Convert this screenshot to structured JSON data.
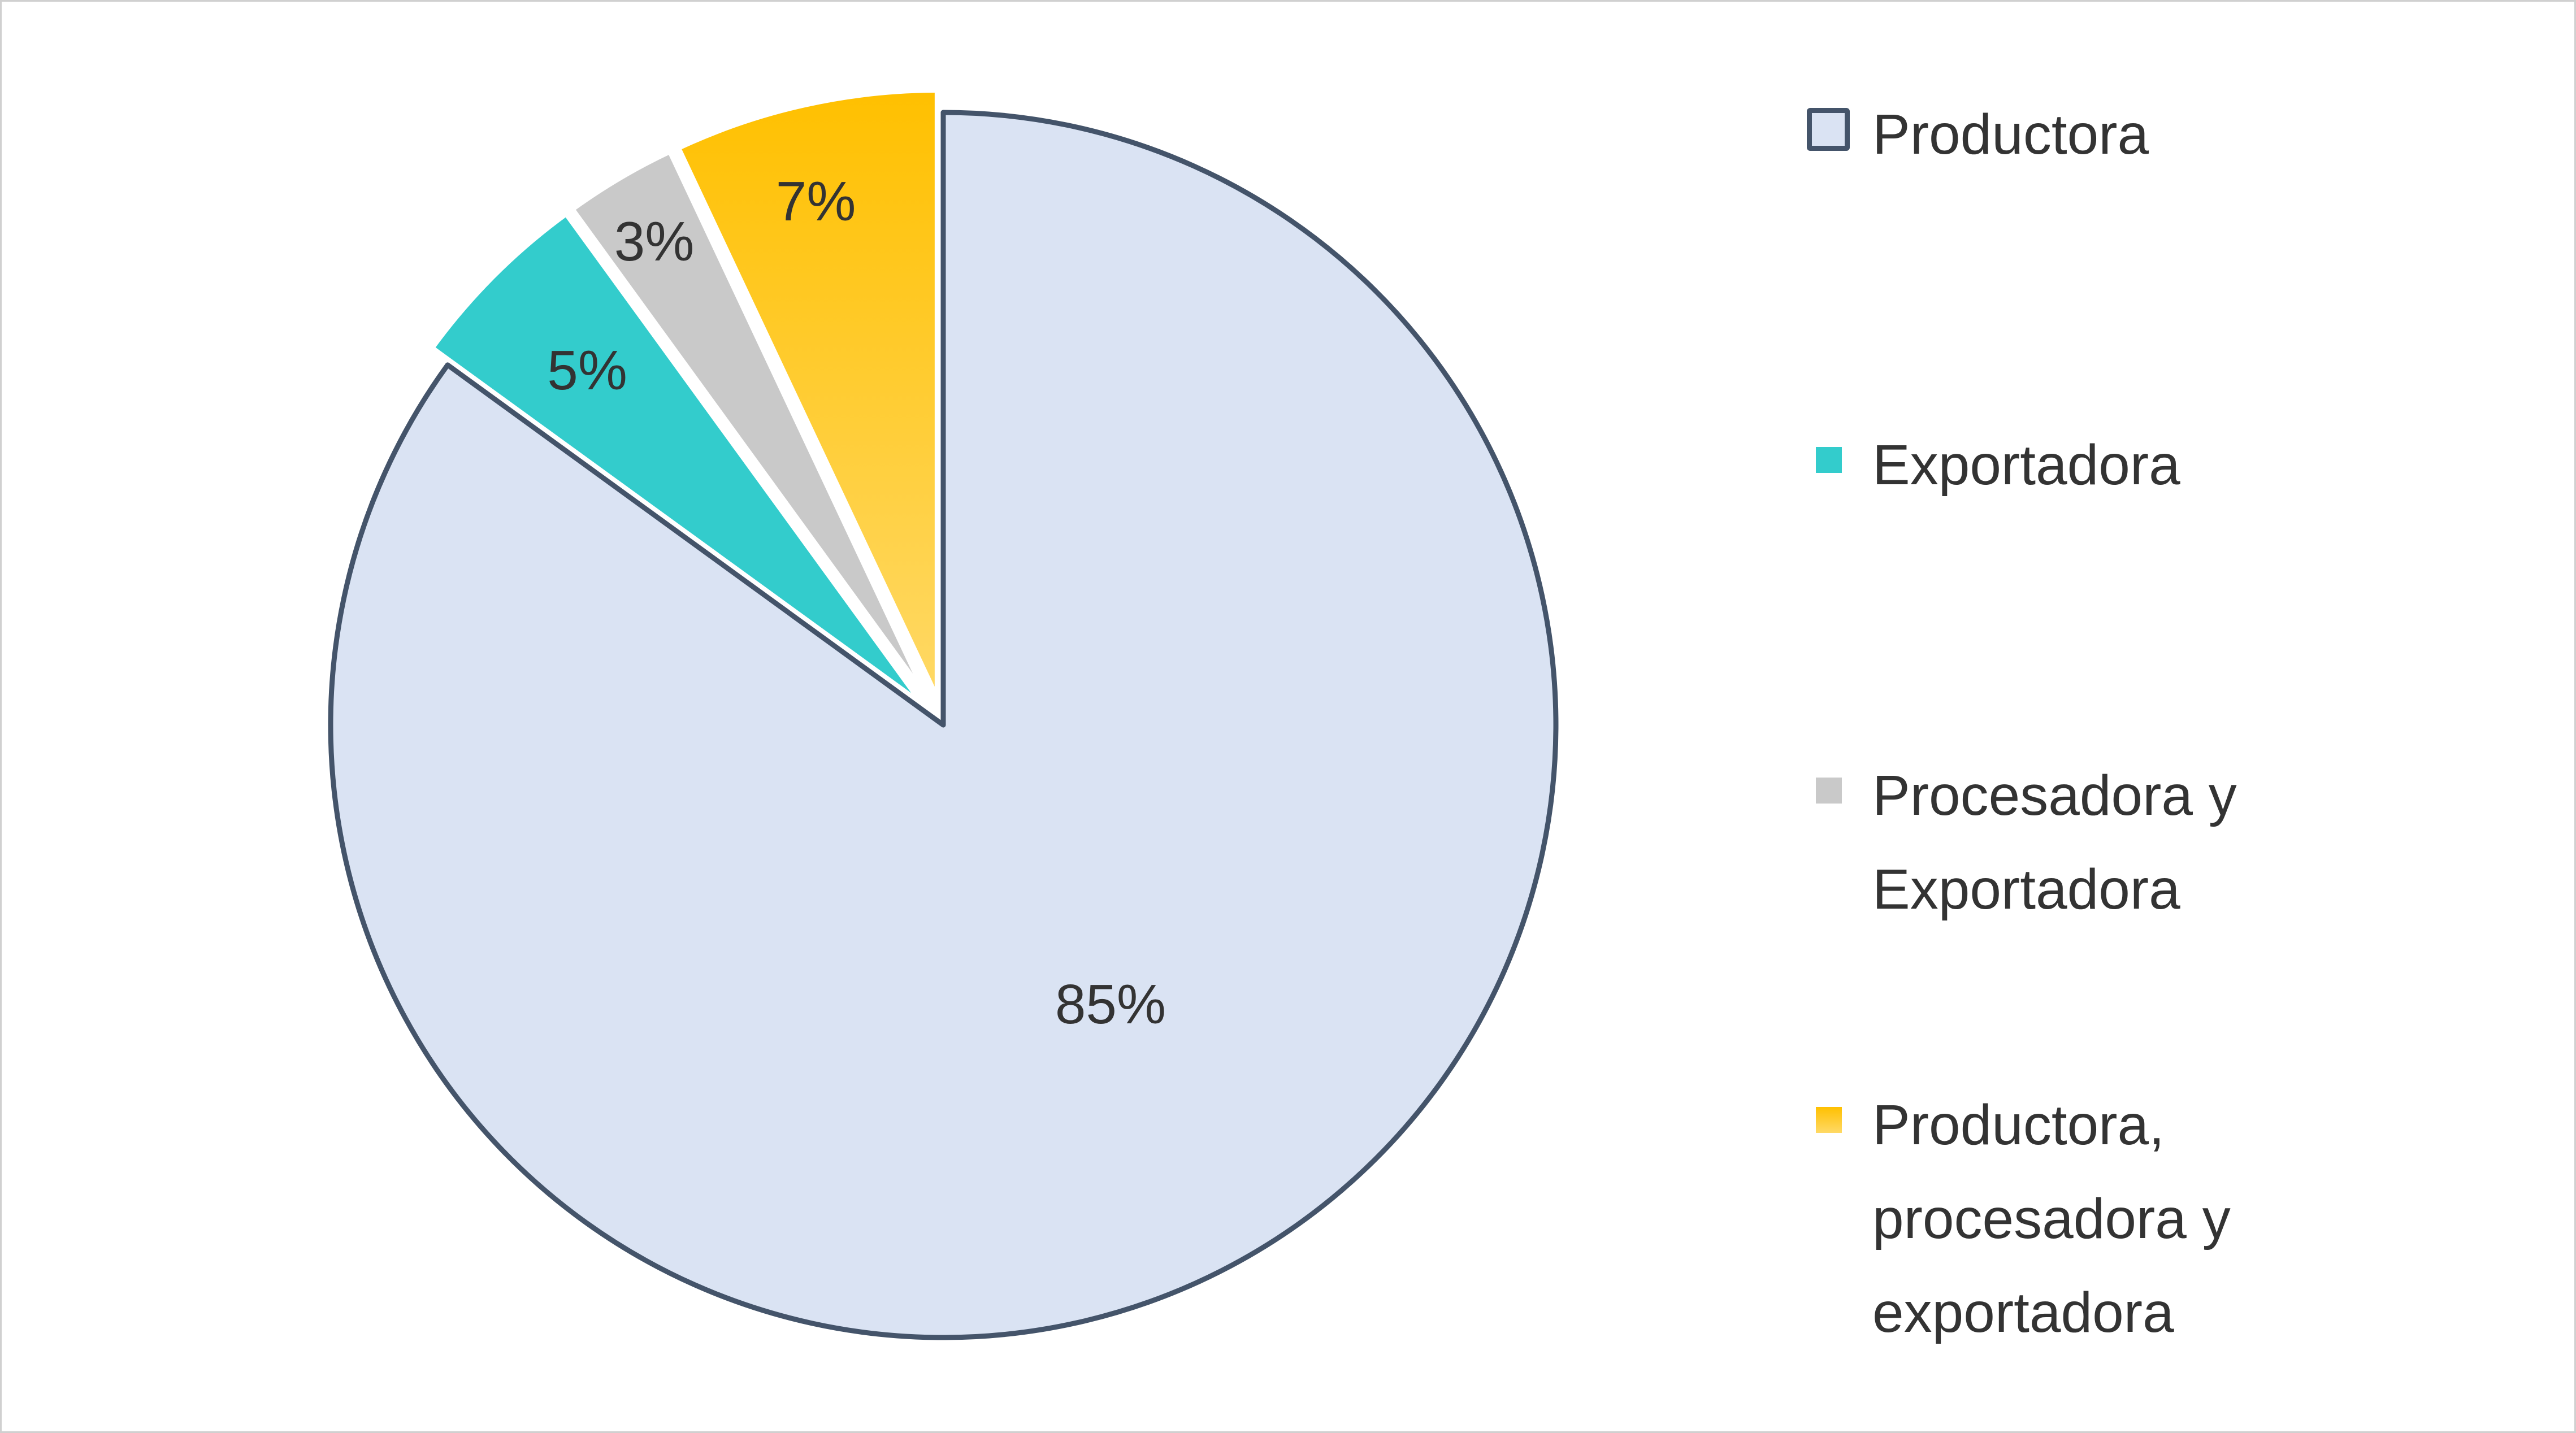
{
  "chart_data": {
    "type": "pie",
    "title": "",
    "start_angle_deg": 0,
    "direction": "clockwise",
    "slices": [
      {
        "name": "Productora",
        "value": 85,
        "label": "85%",
        "color": "#dae3f3",
        "stroke": "#44546a",
        "exploded": false
      },
      {
        "name": "Exportadora",
        "value": 5,
        "label": "5%",
        "color": "#33cccc",
        "stroke": "#ffffff",
        "exploded": true
      },
      {
        "name": "Procesadora y\nExportadora",
        "value": 3,
        "label": "3%",
        "color": "#c9c9c9",
        "stroke": "#ffffff",
        "exploded": true
      },
      {
        "name": "Productora,\nprocesadora y\nexportadora",
        "value": 7,
        "label": "7%",
        "color_top": "#ffc000",
        "color_bottom": "#ffd966",
        "color": "#ffc000",
        "stroke": "#ffffff",
        "exploded": true
      }
    ],
    "legend": {
      "placement": "right"
    }
  }
}
